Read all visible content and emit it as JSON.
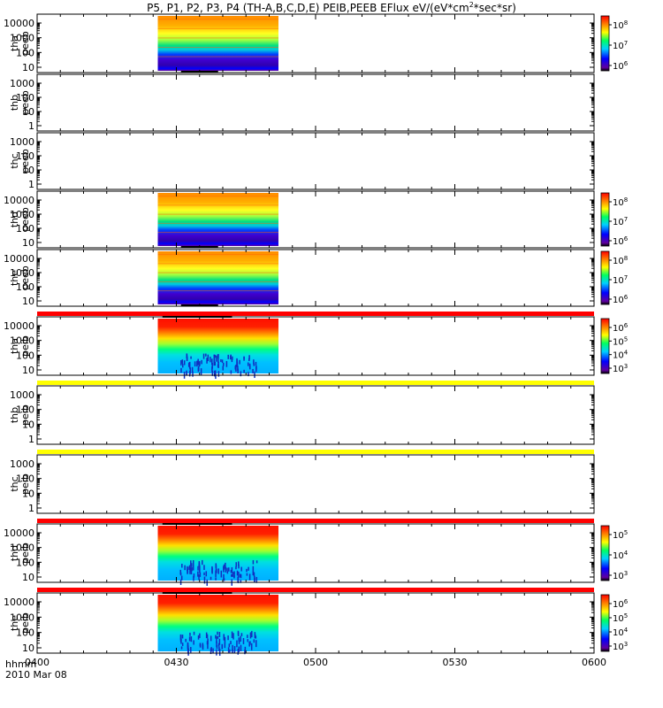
{
  "chart_data": {
    "type": "heatmap",
    "title_main": "P5, P1, P2, P3, P4 (TH-A,B,C,D,E) PEIB,PEEB EFlux eV/(eV*cm",
    "title_sup": "2",
    "title_tail": "*sec*sr)",
    "x_axis_label": "hhmm",
    "x_date_label": "2010 Mar 08",
    "x_ticks": [
      "0400",
      "0430",
      "0500",
      "0530",
      "0600"
    ],
    "x_range_min": [
      0,
      120
    ],
    "data_interval_min": [
      26,
      52
    ],
    "panels": [
      {
        "probe": "tha",
        "product": "peeb",
        "y_ticks": [
          "10",
          "100",
          "1000",
          "10000"
        ],
        "has_data": true,
        "style": "electron",
        "cbar": {
          "ticks": [
            {
              "label": "10",
              "exp": "8"
            },
            {
              "label": "10",
              "exp": "7"
            },
            {
              "label": "10",
              "exp": "6"
            }
          ]
        },
        "bar_above": null
      },
      {
        "probe": "thb",
        "product": "peeb",
        "y_ticks": [
          "1",
          "10",
          "100",
          "1000"
        ],
        "has_data": false,
        "style": "none",
        "cbar": null,
        "bar_above": null
      },
      {
        "probe": "thc",
        "product": "peeb",
        "y_ticks": [
          "1",
          "10",
          "100",
          "1000"
        ],
        "has_data": false,
        "style": "none",
        "cbar": null,
        "bar_above": null
      },
      {
        "probe": "thd",
        "product": "peeb",
        "y_ticks": [
          "10",
          "100",
          "1000",
          "10000"
        ],
        "has_data": true,
        "style": "electron",
        "cbar": {
          "ticks": [
            {
              "label": "10",
              "exp": "8"
            },
            {
              "label": "10",
              "exp": "7"
            },
            {
              "label": "10",
              "exp": "6"
            }
          ]
        },
        "bar_above": null
      },
      {
        "probe": "the",
        "product": "peeb",
        "y_ticks": [
          "10",
          "100",
          "1000",
          "10000"
        ],
        "has_data": true,
        "style": "electron",
        "cbar": {
          "ticks": [
            {
              "label": "10",
              "exp": "8"
            },
            {
              "label": "10",
              "exp": "7"
            },
            {
              "label": "10",
              "exp": "6"
            }
          ]
        },
        "bar_above": null
      },
      {
        "probe": "tha",
        "product": "peib",
        "y_ticks": [
          "10",
          "100",
          "1000",
          "10000"
        ],
        "has_data": true,
        "style": "ion",
        "cbar": {
          "ticks": [
            {
              "label": "10",
              "exp": "6"
            },
            {
              "label": "10",
              "exp": "5"
            },
            {
              "label": "10",
              "exp": "4"
            },
            {
              "label": "10",
              "exp": "3"
            }
          ]
        },
        "bar_above": "#ff0000"
      },
      {
        "probe": "thb",
        "product": "peib",
        "y_ticks": [
          "1",
          "10",
          "100",
          "1000"
        ],
        "has_data": false,
        "style": "none",
        "cbar": null,
        "bar_above": "#ffff00"
      },
      {
        "probe": "thc",
        "product": "peib",
        "y_ticks": [
          "1",
          "10",
          "100",
          "1000"
        ],
        "has_data": false,
        "style": "none",
        "cbar": null,
        "bar_above": "#ffff00"
      },
      {
        "probe": "thd",
        "product": "peib",
        "y_ticks": [
          "10",
          "100",
          "1000",
          "10000"
        ],
        "has_data": true,
        "style": "ion",
        "cbar": {
          "ticks": [
            {
              "label": "10",
              "exp": "5"
            },
            {
              "label": "10",
              "exp": "4"
            },
            {
              "label": "10",
              "exp": "3"
            }
          ]
        },
        "bar_above": "#ff0000"
      },
      {
        "probe": "the",
        "product": "peib",
        "y_ticks": [
          "10",
          "100",
          "1000",
          "10000"
        ],
        "has_data": true,
        "style": "ion",
        "cbar": {
          "ticks": [
            {
              "label": "10",
              "exp": "6"
            },
            {
              "label": "10",
              "exp": "5"
            },
            {
              "label": "10",
              "exp": "4"
            },
            {
              "label": "10",
              "exp": "3"
            }
          ]
        },
        "bar_above": "#ff0000"
      }
    ]
  }
}
